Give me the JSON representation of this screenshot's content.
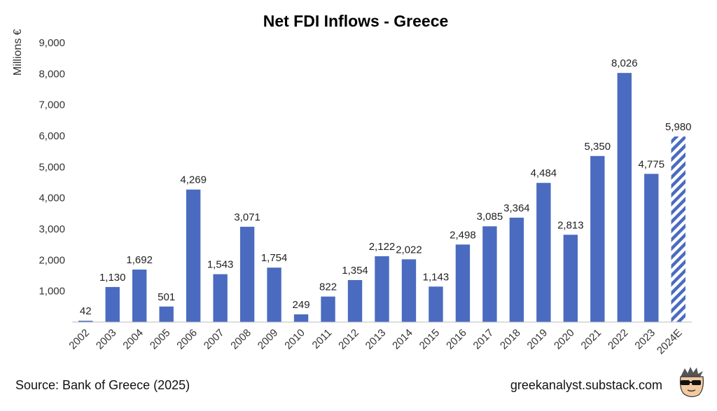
{
  "chart_data": {
    "type": "bar",
    "title": "Net FDI Inflows - Greece",
    "ylabel": "Millions €",
    "xlabel": "",
    "ylim": [
      0,
      9000
    ],
    "yticks": [
      "1,000",
      "2,000",
      "3,000",
      "4,000",
      "5,000",
      "6,000",
      "7,000",
      "8,000",
      "9,000"
    ],
    "categories": [
      "2002",
      "2003",
      "2004",
      "2005",
      "2006",
      "2007",
      "2008",
      "2009",
      "2010",
      "2011",
      "2012",
      "2013",
      "2014",
      "2015",
      "2016",
      "2017",
      "2018",
      "2019",
      "2020",
      "2021",
      "2022",
      "2023",
      "2024E"
    ],
    "values": [
      42,
      1130,
      1692,
      501,
      4269,
      1543,
      3071,
      1754,
      249,
      822,
      1354,
      2122,
      2022,
      1143,
      2498,
      3085,
      3364,
      4484,
      2813,
      5350,
      8026,
      4775,
      5980
    ],
    "value_labels": [
      "42",
      "1,130",
      "1,692",
      "501",
      "4,269",
      "1,543",
      "3,071",
      "1,754",
      "249",
      "822",
      "1,354",
      "2,122",
      "2,022",
      "1,143",
      "2,498",
      "3,085",
      "3,364",
      "4,484",
      "2,813",
      "5,350",
      "8,026",
      "4,775",
      "5,980"
    ],
    "estimate_category": "2024E",
    "grid": false,
    "bar_color": "#4a6bbf"
  },
  "footer": {
    "source": "Source: Bank of Greece (2025)",
    "site": "greekanalyst.substack.com",
    "logo_icon": "sunglasses-avatar-icon"
  }
}
